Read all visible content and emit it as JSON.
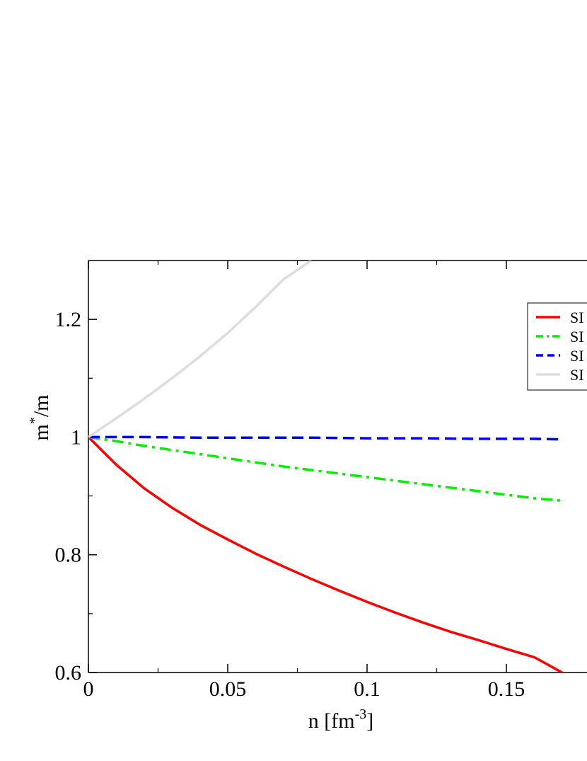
{
  "chart_data": {
    "type": "line",
    "title": "",
    "xlabel": {
      "main": "n [fm",
      "sup": "-3",
      "close": "]"
    },
    "ylabel": {
      "base": "m",
      "sup": "*",
      "rest": "/m"
    },
    "xlim": [
      0,
      0.17
    ],
    "ylim": [
      0.6,
      1.3
    ],
    "xticks": [
      0,
      0.05,
      0.1,
      0.15
    ],
    "xtick_labels": [
      "0",
      "0.05",
      "0.1",
      "0.15"
    ],
    "yticks": [
      0.6,
      0.8,
      1.0,
      1.2
    ],
    "ytick_labels": [
      "0.6",
      "0.8",
      "1",
      "1.2"
    ],
    "grid": false,
    "legend_position": "top-right",
    "series": [
      {
        "name": "SI",
        "color": "#ff0000",
        "dash": "solid",
        "x": [
          0,
          0.01,
          0.02,
          0.03,
          0.04,
          0.05,
          0.06,
          0.07,
          0.08,
          0.09,
          0.1,
          0.11,
          0.12,
          0.13,
          0.14,
          0.15,
          0.16,
          0.17
        ],
        "y": [
          1.0,
          0.953,
          0.913,
          0.88,
          0.851,
          0.826,
          0.802,
          0.78,
          0.759,
          0.739,
          0.72,
          0.702,
          0.685,
          0.669,
          0.655,
          0.64,
          0.626,
          0.6
        ]
      },
      {
        "name": "SI",
        "color": "#00ee00",
        "dash": "dashdot",
        "x": [
          0,
          0.01,
          0.02,
          0.03,
          0.04,
          0.05,
          0.06,
          0.07,
          0.08,
          0.09,
          0.1,
          0.11,
          0.12,
          0.13,
          0.14,
          0.15,
          0.16,
          0.17
        ],
        "y": [
          1.0,
          0.993,
          0.985,
          0.978,
          0.971,
          0.964,
          0.957,
          0.95,
          0.944,
          0.938,
          0.932,
          0.926,
          0.92,
          0.914,
          0.908,
          0.902,
          0.896,
          0.892
        ]
      },
      {
        "name": "SI",
        "color": "#0000ff",
        "dash": "dashed",
        "x": [
          0,
          0.02,
          0.04,
          0.06,
          0.08,
          0.1,
          0.12,
          0.14,
          0.16,
          0.17
        ],
        "y": [
          1.0,
          1.0,
          0.999,
          0.999,
          0.999,
          0.998,
          0.998,
          0.997,
          0.997,
          0.996
        ]
      },
      {
        "name": "SI",
        "color": "#dddddd",
        "dash": "solid",
        "x": [
          0,
          0.01,
          0.02,
          0.03,
          0.04,
          0.05,
          0.06,
          0.07,
          0.08
        ],
        "y": [
          1.0,
          1.032,
          1.065,
          1.1,
          1.137,
          1.177,
          1.221,
          1.268,
          1.3
        ]
      }
    ]
  }
}
